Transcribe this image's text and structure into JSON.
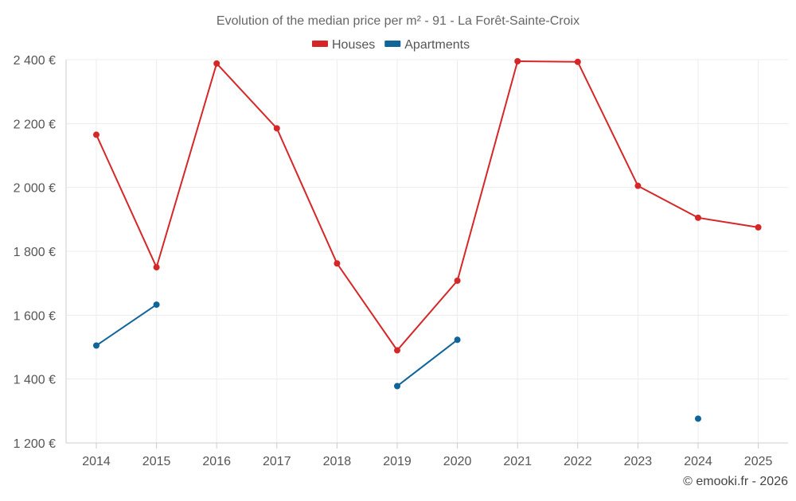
{
  "chart_data": {
    "type": "line",
    "title": "Evolution of the median price per m² - 91 - La Forêt-Sainte-Croix",
    "xlabel": "",
    "ylabel": "",
    "categories": [
      "2014",
      "2015",
      "2016",
      "2017",
      "2018",
      "2019",
      "2020",
      "2021",
      "2022",
      "2023",
      "2024",
      "2025"
    ],
    "ylim": [
      1200,
      2400
    ],
    "yticks": [
      1200,
      1400,
      1600,
      1800,
      2000,
      2200,
      2400
    ],
    "ytick_labels": [
      "1 200 €",
      "1 400 €",
      "1 600 €",
      "1 800 €",
      "2 000 €",
      "2 200 €",
      "2 400 €"
    ],
    "grid": true,
    "legend_position": "top-center",
    "series": [
      {
        "name": "Houses",
        "color": "#d62728",
        "values": [
          2165,
          1750,
          2388,
          2185,
          1762,
          1490,
          1708,
          2395,
          2393,
          2005,
          1905,
          1875
        ]
      },
      {
        "name": "Apartments",
        "color": "#0f6499",
        "values": [
          1505,
          1633,
          null,
          null,
          null,
          1378,
          1523,
          null,
          null,
          null,
          1276,
          null
        ]
      }
    ]
  },
  "credit": "© emooki.fr - 2026"
}
